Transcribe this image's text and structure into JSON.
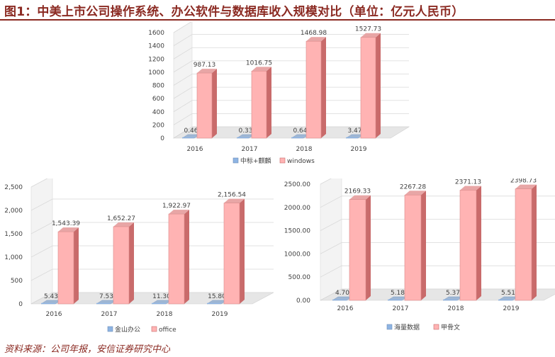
{
  "figure": {
    "title": "图1：中美上市公司操作系统、办公软件与数据库收入规模对比（单位：亿元人民币）",
    "source": "资料来源：公司年报，安信证券研究中心"
  },
  "colors": {
    "title": "#8b2a22",
    "series_blue": "#8eb4e3",
    "series_pink": "#ffb3b3",
    "series_pink_side": "#c96b6b",
    "series_pink_top": "#e8a6a6",
    "wall": "#e6e6e6",
    "grid": "#d9d9d9"
  },
  "chart_data": [
    {
      "id": "top",
      "type": "bar",
      "categories": [
        "2016",
        "2017",
        "2018",
        "2019"
      ],
      "series": [
        {
          "name": "中标+麒麟",
          "values": [
            0.46,
            0.33,
            0.64,
            3.47
          ],
          "labels": [
            "0.46",
            "0.33",
            "0.64",
            "3.47"
          ]
        },
        {
          "name": "windows",
          "values": [
            987.13,
            1016.75,
            1468.98,
            1527.73
          ],
          "labels": [
            "987.13",
            "1016.75",
            "1468.98",
            "1527.73"
          ]
        }
      ],
      "ylim": [
        0,
        1600
      ],
      "yticks": [
        0,
        200,
        400,
        600,
        800,
        1000,
        1200,
        1400,
        1600
      ],
      "ytick_labels": [
        "0",
        "200",
        "400",
        "600",
        "800",
        "1000",
        "1200",
        "1400",
        "1600"
      ],
      "legend": "bottom",
      "grid": true
    },
    {
      "id": "left",
      "type": "bar",
      "categories": [
        "2016",
        "2017",
        "2018",
        "2019"
      ],
      "series": [
        {
          "name": "金山办公",
          "values": [
            5.43,
            7.53,
            11.3,
            15.8
          ],
          "labels": [
            "5.43",
            "7.53",
            "11.30",
            "15.80"
          ]
        },
        {
          "name": "office",
          "values": [
            1543.39,
            1652.27,
            1922.97,
            2156.54
          ],
          "labels": [
            "1,543.39",
            "1,652.27",
            "1,922.97",
            "2,156.54"
          ]
        }
      ],
      "ylim": [
        0,
        2500
      ],
      "yticks": [
        0,
        500,
        1000,
        1500,
        2000,
        2500
      ],
      "ytick_labels": [
        "0",
        "500",
        "1,000",
        "1,500",
        "2,000",
        "2,500"
      ],
      "legend": "bottom",
      "grid": true
    },
    {
      "id": "right",
      "type": "bar",
      "categories": [
        "2016",
        "2017",
        "2018",
        "2019"
      ],
      "series": [
        {
          "name": "海量数据",
          "values": [
            4.7,
            5.18,
            5.37,
            5.51
          ],
          "labels": [
            "4.70",
            "5.18",
            "5.37",
            "5.51"
          ]
        },
        {
          "name": "甲骨文",
          "values": [
            2169.33,
            2267.28,
            2371.13,
            2398.73
          ],
          "labels": [
            "2169.33",
            "2267.28",
            "2371.13",
            "2398.73"
          ]
        }
      ],
      "ylim": [
        0,
        2500
      ],
      "yticks": [
        0,
        500,
        1000,
        1500,
        2000,
        2500
      ],
      "ytick_labels": [
        "0.00",
        "500.00",
        "1000.00",
        "1500.00",
        "2000.00",
        "2500.00"
      ],
      "legend": "bottom",
      "grid": true
    }
  ]
}
